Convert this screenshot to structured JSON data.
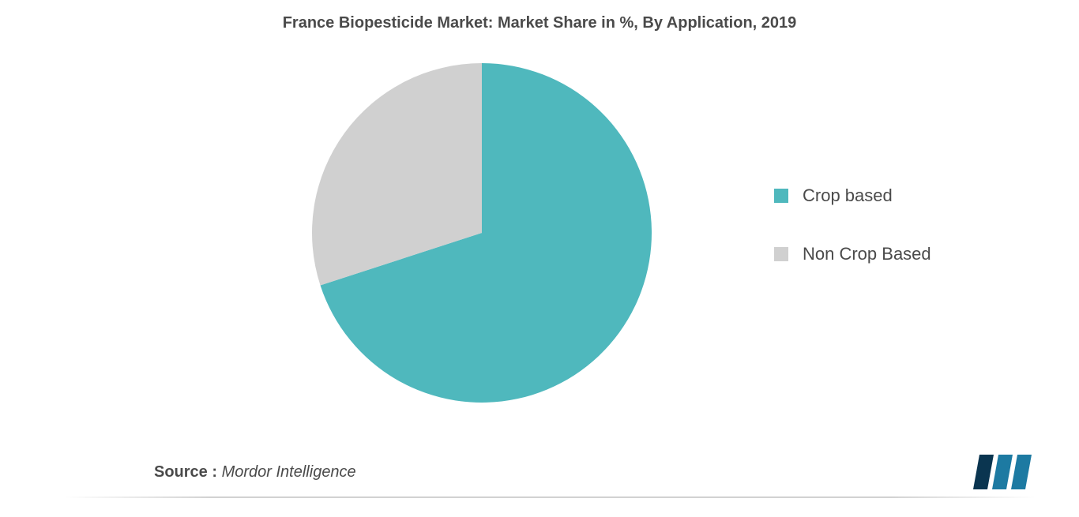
{
  "chart": {
    "type": "pie",
    "title": "France Biopesticide Market: Market Share in %, By Application, 2019",
    "title_fontsize": 20,
    "title_color": "#4a4a4a",
    "background_color": "#ffffff",
    "radius": 215,
    "center_hint": "middle-left",
    "slices": [
      {
        "label": "Crop based",
        "value": 70,
        "color": "#4fb8bd"
      },
      {
        "label": "Non Crop Based",
        "value": 30,
        "color": "#d0d0d0"
      }
    ],
    "start_angle_deg": 0,
    "legend": {
      "position": "right-middle",
      "swatch_size": 18,
      "fontsize": 22,
      "color": "#4a4a4a",
      "gap": 48
    }
  },
  "source": {
    "label": "Source :",
    "value": "Mordor Intelligence",
    "fontsize": 20,
    "color": "#4a4a4a"
  },
  "logo": {
    "name": "mordor-intelligence-logo",
    "bars": [
      {
        "color": "#0a3550"
      },
      {
        "color": "#1d7aa2"
      },
      {
        "color": "#1d7aa2"
      }
    ],
    "width": 74,
    "height": 44
  }
}
